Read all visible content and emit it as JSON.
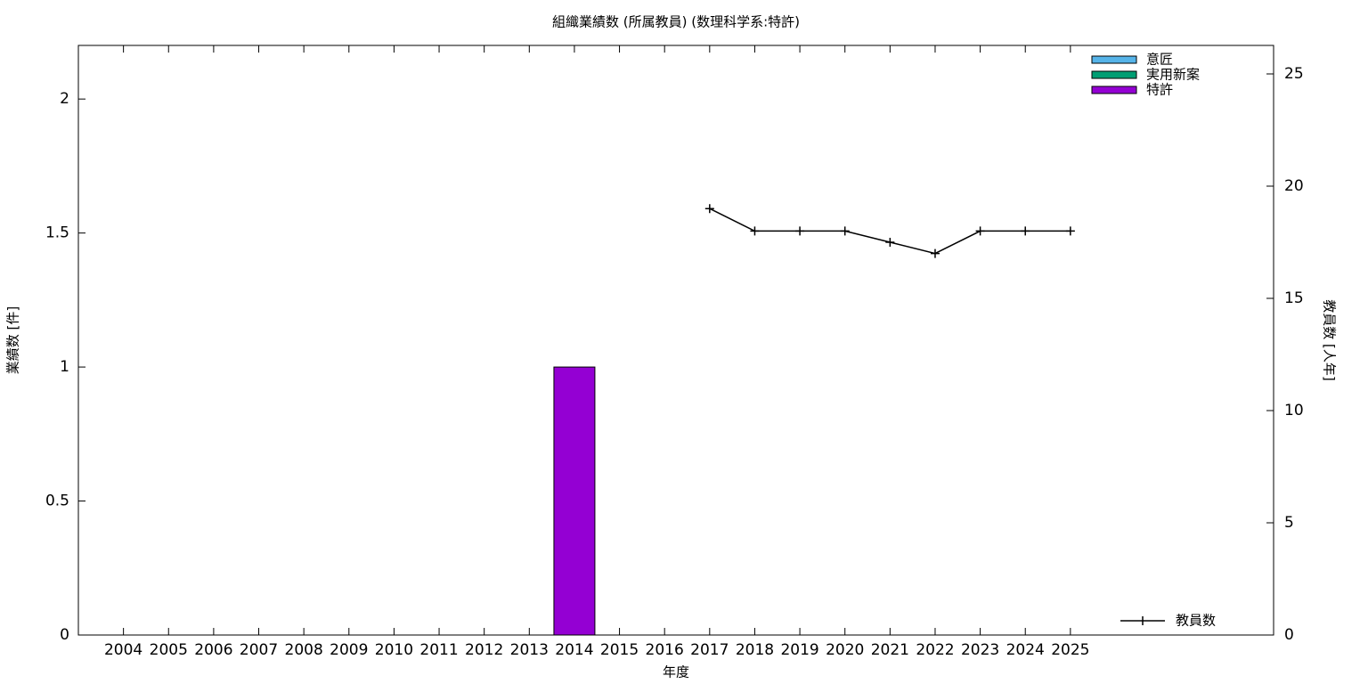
{
  "chart_data": {
    "type": "bar",
    "stacked": true,
    "title": "組織業績数 (所属教員) (数理科学系:特許)",
    "x_label": "年度",
    "y_label": "業績数 [件]",
    "y2_label": "教員数 [人年]",
    "categories": [
      "2004",
      "2005",
      "2006",
      "2007",
      "2008",
      "2009",
      "2010",
      "2011",
      "2012",
      "2013",
      "2014",
      "2015",
      "2016",
      "2017",
      "2018",
      "2019",
      "2020",
      "2021",
      "2022",
      "2023",
      "2024",
      "2025"
    ],
    "series": [
      {
        "name": "意匠",
        "type": "bar",
        "color": "#56b4e9",
        "values": [
          0,
          0,
          0,
          0,
          0,
          0,
          0,
          0,
          0,
          0,
          0,
          0,
          0,
          0,
          0,
          0,
          0,
          0,
          0,
          0,
          0,
          0
        ]
      },
      {
        "name": "実用新案",
        "type": "bar",
        "color": "#009e73",
        "values": [
          0,
          0,
          0,
          0,
          0,
          0,
          0,
          0,
          0,
          0,
          0,
          0,
          0,
          0,
          0,
          0,
          0,
          0,
          0,
          0,
          0,
          0
        ]
      },
      {
        "name": "特許",
        "type": "bar",
        "color": "#9400d3",
        "values": [
          0,
          0,
          0,
          0,
          0,
          0,
          0,
          0,
          0,
          0,
          1,
          0,
          0,
          0,
          0,
          0,
          0,
          0,
          0,
          0,
          0,
          0
        ]
      },
      {
        "name": "教員数",
        "type": "line",
        "axis": "y2",
        "color": "#000000",
        "values": [
          null,
          null,
          null,
          null,
          null,
          null,
          null,
          null,
          null,
          null,
          null,
          null,
          null,
          19,
          18,
          18,
          18,
          17.5,
          17,
          18,
          18,
          18
        ]
      }
    ],
    "ylim": [
      0,
      2.2
    ],
    "yticks": [
      0,
      0.5,
      1,
      1.5,
      2
    ],
    "y2lim": [
      0,
      26.27
    ],
    "y2ticks": [
      0,
      5,
      10,
      15,
      20,
      25
    ],
    "legend": "top-right",
    "line_legend": "bottom-right"
  }
}
